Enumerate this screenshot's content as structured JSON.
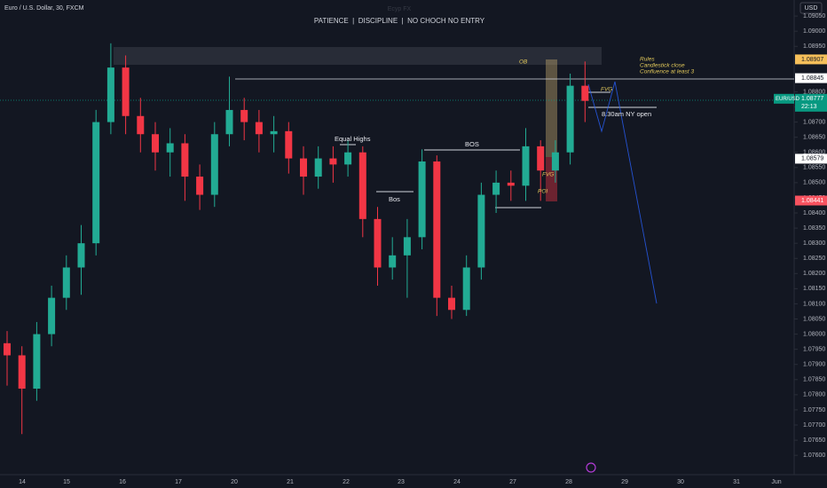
{
  "chart_data": {
    "type": "candlestick",
    "title": "Euro / U.S. Dollar, 30, FXCM",
    "watermark": "Ecyp FX",
    "subtitle": "PATIENCE  |  DISCIPLINE  |  NO CHOCH NO ENTRY",
    "currency": "USD",
    "up_color": "#22ab94",
    "down_color": "#f23645",
    "open": [
      1.0797,
      1.0793,
      1.0782,
      1.08,
      1.0812,
      1.0822,
      1.083,
      1.087,
      1.0888,
      1.0872,
      1.0866,
      1.086,
      1.0863,
      1.0852,
      1.0846,
      1.0866,
      1.0874,
      1.087,
      1.0866,
      1.0867,
      1.0858,
      1.0852,
      1.0858,
      1.0856,
      1.086,
      1.0838,
      1.0822,
      1.0826,
      1.0832,
      1.0857,
      1.0812,
      1.0808,
      1.0822,
      1.0846,
      1.085,
      1.0849,
      1.0862,
      1.0854,
      1.086,
      1.0882
    ],
    "high": [
      1.0801,
      1.0796,
      1.0804,
      1.0816,
      1.0826,
      1.0836,
      1.0874,
      1.0896,
      1.0892,
      1.0878,
      1.087,
      1.0868,
      1.0866,
      1.0856,
      1.087,
      1.0885,
      1.0878,
      1.0874,
      1.0872,
      1.087,
      1.0862,
      1.0862,
      1.0862,
      1.0864,
      1.0862,
      1.0842,
      1.0832,
      1.0838,
      1.0861,
      1.0859,
      1.0816,
      1.0826,
      1.085,
      1.0854,
      1.0854,
      1.0868,
      1.0864,
      1.0864,
      1.0886,
      1.089
    ],
    "low": [
      1.0783,
      1.0767,
      1.0778,
      1.0796,
      1.0808,
      1.0813,
      1.0826,
      1.0866,
      1.0866,
      1.086,
      1.0854,
      1.0852,
      1.0844,
      1.0841,
      1.0842,
      1.0862,
      1.0864,
      1.086,
      1.086,
      1.0853,
      1.0846,
      1.0848,
      1.085,
      1.0852,
      1.0832,
      1.0816,
      1.0818,
      1.0812,
      1.0828,
      1.0806,
      1.0805,
      1.0806,
      1.0818,
      1.084,
      1.0844,
      1.0844,
      1.0844,
      1.085,
      1.0856,
      1.087
    ],
    "close": [
      1.0793,
      1.0782,
      1.08,
      1.0812,
      1.0822,
      1.083,
      1.087,
      1.0888,
      1.0872,
      1.0866,
      1.086,
      1.0863,
      1.0852,
      1.0846,
      1.0866,
      1.0874,
      1.087,
      1.0866,
      1.0867,
      1.0858,
      1.0852,
      1.0858,
      1.0856,
      1.086,
      1.0838,
      1.0822,
      1.0826,
      1.0832,
      1.0857,
      1.0812,
      1.0808,
      1.0822,
      1.0846,
      1.085,
      1.0849,
      1.0862,
      1.0854,
      1.086,
      1.0882,
      1.0877
    ],
    "x_labels": [
      "14",
      "15",
      "16",
      "17",
      "20",
      "21",
      "22",
      "23",
      "24",
      "27",
      "28",
      "29",
      "30",
      "31",
      "Jun"
    ],
    "ylim": [
      1.07536,
      1.09103
    ],
    "yticks": [
      {
        "value": 1.0905,
        "label": "1.09050"
      },
      {
        "value": 1.09,
        "label": "1.09000"
      },
      {
        "value": 1.0895,
        "label": "1.08950"
      },
      {
        "value": 1.089,
        "label": "1.08900"
      },
      {
        "value": 1.0885,
        "label": "1.08850"
      },
      {
        "value": 1.088,
        "label": "1.08800"
      },
      {
        "value": 1.0875,
        "label": "1.08750"
      },
      {
        "value": 1.087,
        "label": "1.08700"
      },
      {
        "value": 1.0865,
        "label": "1.08650"
      },
      {
        "value": 1.086,
        "label": "1.08600"
      },
      {
        "value": 1.0855,
        "label": "1.08550"
      },
      {
        "value": 1.085,
        "label": "1.08500"
      },
      {
        "value": 1.0845,
        "label": "1.08450"
      },
      {
        "value": 1.084,
        "label": "1.08400"
      },
      {
        "value": 1.0835,
        "label": "1.08350"
      },
      {
        "value": 1.083,
        "label": "1.08300"
      },
      {
        "value": 1.0825,
        "label": "1.08250"
      },
      {
        "value": 1.082,
        "label": "1.08200"
      },
      {
        "value": 1.0815,
        "label": "1.08150"
      },
      {
        "value": 1.081,
        "label": "1.08100"
      },
      {
        "value": 1.0805,
        "label": "1.08050"
      },
      {
        "value": 1.08,
        "label": "1.08000"
      },
      {
        "value": 1.0795,
        "label": "1.07950"
      },
      {
        "value": 1.079,
        "label": "1.07900"
      },
      {
        "value": 1.0785,
        "label": "1.07850"
      },
      {
        "value": 1.078,
        "label": "1.07800"
      },
      {
        "value": 1.0775,
        "label": "1.07750"
      },
      {
        "value": 1.077,
        "label": "1.07700"
      },
      {
        "value": 1.0765,
        "label": "1.07650"
      },
      {
        "value": 1.076,
        "label": "1.07600"
      }
    ],
    "grid": false,
    "price_markers": [
      {
        "value": 1.08907,
        "label": "1.08907",
        "color": "#f7c05a"
      },
      {
        "value": 1.08845,
        "label": "1.08845",
        "color": "#ffffff"
      },
      {
        "value": 1.08777,
        "label": "1.08777",
        "color": "#089981",
        "name": "EUR/USD",
        "countdown": "22:13"
      },
      {
        "value": 1.08579,
        "label": "1.08579",
        "color": "#ffffff"
      },
      {
        "value": 1.08441,
        "label": "1.08441",
        "color": "#f7525f"
      }
    ],
    "annotations": [
      "OB",
      "Rules",
      "Candlestick close",
      "Confluence at least 3",
      "FVG",
      "8.30am NY open",
      "Equal Highs",
      "BOS",
      "Bos",
      "FVG",
      "POI"
    ]
  }
}
